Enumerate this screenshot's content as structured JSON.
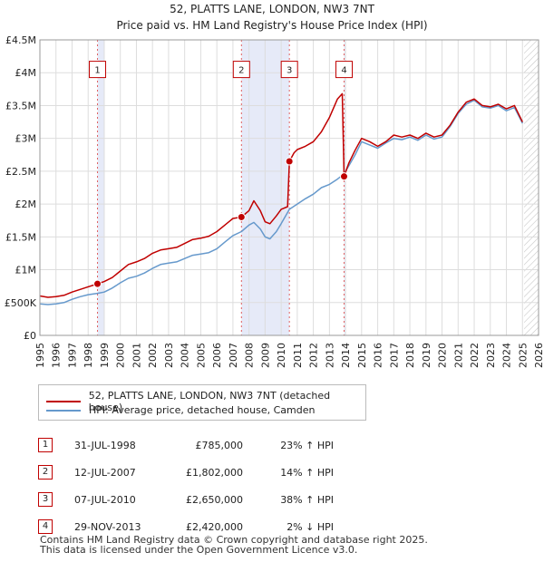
{
  "chart_data": {
    "type": "line",
    "title": "52, PLATTS LANE, LONDON, NW3 7NT",
    "subtitle": "Price paid vs. HM Land Registry's House Price Index (HPI)",
    "xlim": [
      1995,
      2026
    ],
    "ylim": [
      0,
      4500000
    ],
    "x_ticks": [
      "1995",
      "1996",
      "1997",
      "1998",
      "1999",
      "2000",
      "2001",
      "2002",
      "2003",
      "2004",
      "2005",
      "2006",
      "2007",
      "2008",
      "2009",
      "2010",
      "2011",
      "2012",
      "2013",
      "2014",
      "2015",
      "2016",
      "2017",
      "2018",
      "2019",
      "2020",
      "2021",
      "2022",
      "2023",
      "2024",
      "2025",
      "2026"
    ],
    "y_ticks": [
      {
        "value": 0,
        "label": "£0"
      },
      {
        "value": 500000,
        "label": "£500K"
      },
      {
        "value": 1000000,
        "label": "£1M"
      },
      {
        "value": 1500000,
        "label": "£1.5M"
      },
      {
        "value": 2000000,
        "label": "£2M"
      },
      {
        "value": 2500000,
        "label": "£2.5M"
      },
      {
        "value": 3000000,
        "label": "£3M"
      },
      {
        "value": 3500000,
        "label": "£3.5M"
      },
      {
        "value": 4000000,
        "label": "£4M"
      },
      {
        "value": 4500000,
        "label": "£4.5M"
      }
    ],
    "shaded_periods": [
      [
        1998.58,
        1999.0
      ],
      [
        2007.53,
        2010.51
      ],
      [
        2013.91,
        2014.0
      ]
    ],
    "hatched_after": 2025.1,
    "series": [
      {
        "name": "52, PLATTS LANE, LONDON, NW3 7NT (detached house)",
        "color": "#c00000",
        "points": [
          [
            1995.0,
            600000
          ],
          [
            1995.5,
            580000
          ],
          [
            1996.0,
            590000
          ],
          [
            1996.5,
            610000
          ],
          [
            1997.0,
            660000
          ],
          [
            1997.5,
            700000
          ],
          [
            1998.0,
            740000
          ],
          [
            1998.58,
            785000
          ],
          [
            1999.0,
            820000
          ],
          [
            1999.5,
            880000
          ],
          [
            2000.0,
            980000
          ],
          [
            2000.5,
            1080000
          ],
          [
            2001.0,
            1120000
          ],
          [
            2001.5,
            1170000
          ],
          [
            2002.0,
            1250000
          ],
          [
            2002.5,
            1300000
          ],
          [
            2003.0,
            1320000
          ],
          [
            2003.5,
            1340000
          ],
          [
            2004.0,
            1400000
          ],
          [
            2004.5,
            1460000
          ],
          [
            2005.0,
            1480000
          ],
          [
            2005.5,
            1510000
          ],
          [
            2006.0,
            1580000
          ],
          [
            2006.5,
            1680000
          ],
          [
            2007.0,
            1780000
          ],
          [
            2007.53,
            1802000
          ],
          [
            2008.0,
            1900000
          ],
          [
            2008.3,
            2050000
          ],
          [
            2008.7,
            1900000
          ],
          [
            2009.0,
            1730000
          ],
          [
            2009.3,
            1700000
          ],
          [
            2009.7,
            1820000
          ],
          [
            2010.0,
            1920000
          ],
          [
            2010.4,
            1960000
          ],
          [
            2010.51,
            2650000
          ],
          [
            2010.8,
            2780000
          ],
          [
            2011.0,
            2830000
          ],
          [
            2011.5,
            2880000
          ],
          [
            2012.0,
            2950000
          ],
          [
            2012.5,
            3100000
          ],
          [
            2013.0,
            3320000
          ],
          [
            2013.5,
            3600000
          ],
          [
            2013.8,
            3680000
          ],
          [
            2013.91,
            2420000
          ],
          [
            2014.2,
            2620000
          ],
          [
            2014.6,
            2820000
          ],
          [
            2015.0,
            3000000
          ],
          [
            2015.5,
            2950000
          ],
          [
            2016.0,
            2880000
          ],
          [
            2016.5,
            2950000
          ],
          [
            2017.0,
            3050000
          ],
          [
            2017.5,
            3020000
          ],
          [
            2018.0,
            3050000
          ],
          [
            2018.5,
            3000000
          ],
          [
            2019.0,
            3080000
          ],
          [
            2019.5,
            3020000
          ],
          [
            2020.0,
            3050000
          ],
          [
            2020.5,
            3200000
          ],
          [
            2021.0,
            3400000
          ],
          [
            2021.5,
            3550000
          ],
          [
            2022.0,
            3600000
          ],
          [
            2022.5,
            3500000
          ],
          [
            2023.0,
            3480000
          ],
          [
            2023.5,
            3520000
          ],
          [
            2024.0,
            3450000
          ],
          [
            2024.5,
            3500000
          ],
          [
            2025.0,
            3250000
          ]
        ]
      },
      {
        "name": "HPI: Average price, detached house, Camden",
        "color": "#6699cc",
        "points": [
          [
            1995.0,
            480000
          ],
          [
            1995.5,
            470000
          ],
          [
            1996.0,
            480000
          ],
          [
            1996.5,
            500000
          ],
          [
            1997.0,
            550000
          ],
          [
            1997.5,
            590000
          ],
          [
            1998.0,
            620000
          ],
          [
            1998.58,
            640000
          ],
          [
            1999.0,
            660000
          ],
          [
            1999.5,
            720000
          ],
          [
            2000.0,
            800000
          ],
          [
            2000.5,
            870000
          ],
          [
            2001.0,
            900000
          ],
          [
            2001.5,
            950000
          ],
          [
            2002.0,
            1020000
          ],
          [
            2002.5,
            1080000
          ],
          [
            2003.0,
            1100000
          ],
          [
            2003.5,
            1120000
          ],
          [
            2004.0,
            1170000
          ],
          [
            2004.5,
            1220000
          ],
          [
            2005.0,
            1240000
          ],
          [
            2005.5,
            1260000
          ],
          [
            2006.0,
            1320000
          ],
          [
            2006.5,
            1420000
          ],
          [
            2007.0,
            1520000
          ],
          [
            2007.53,
            1580000
          ],
          [
            2008.0,
            1680000
          ],
          [
            2008.3,
            1720000
          ],
          [
            2008.7,
            1620000
          ],
          [
            2009.0,
            1500000
          ],
          [
            2009.3,
            1470000
          ],
          [
            2009.7,
            1580000
          ],
          [
            2010.0,
            1700000
          ],
          [
            2010.51,
            1920000
          ],
          [
            2011.0,
            2000000
          ],
          [
            2011.5,
            2080000
          ],
          [
            2012.0,
            2150000
          ],
          [
            2012.5,
            2250000
          ],
          [
            2013.0,
            2300000
          ],
          [
            2013.5,
            2380000
          ],
          [
            2013.91,
            2460000
          ],
          [
            2014.2,
            2580000
          ],
          [
            2014.6,
            2750000
          ],
          [
            2015.0,
            2950000
          ],
          [
            2015.5,
            2900000
          ],
          [
            2016.0,
            2850000
          ],
          [
            2016.5,
            2930000
          ],
          [
            2017.0,
            3000000
          ],
          [
            2017.5,
            2980000
          ],
          [
            2018.0,
            3020000
          ],
          [
            2018.5,
            2970000
          ],
          [
            2019.0,
            3050000
          ],
          [
            2019.5,
            2990000
          ],
          [
            2020.0,
            3020000
          ],
          [
            2020.5,
            3180000
          ],
          [
            2021.0,
            3380000
          ],
          [
            2021.5,
            3520000
          ],
          [
            2022.0,
            3580000
          ],
          [
            2022.5,
            3480000
          ],
          [
            2023.0,
            3460000
          ],
          [
            2023.5,
            3500000
          ],
          [
            2024.0,
            3420000
          ],
          [
            2024.5,
            3470000
          ],
          [
            2025.0,
            3230000
          ]
        ]
      }
    ],
    "sales": [
      {
        "id": "1",
        "x": 1998.58,
        "y": 785000
      },
      {
        "id": "2",
        "x": 2007.53,
        "y": 1802000
      },
      {
        "id": "3",
        "x": 2010.51,
        "y": 2650000
      },
      {
        "id": "4",
        "x": 2013.91,
        "y": 2420000
      }
    ]
  },
  "legend": {
    "property_label": "52, PLATTS LANE, LONDON, NW3 7NT (detached house)",
    "hpi_label": "HPI: Average price, detached house, Camden",
    "property_color": "#c00000",
    "hpi_color": "#6699cc"
  },
  "sales_table": [
    {
      "num": "1",
      "date": "31-JUL-1998",
      "price": "£785,000",
      "hpi": "23% ↑ HPI"
    },
    {
      "num": "2",
      "date": "12-JUL-2007",
      "price": "£1,802,000",
      "hpi": "14% ↑ HPI"
    },
    {
      "num": "3",
      "date": "07-JUL-2010",
      "price": "£2,650,000",
      "hpi": "38% ↑ HPI"
    },
    {
      "num": "4",
      "date": "29-NOV-2013",
      "price": "£2,420,000",
      "hpi": "2% ↓ HPI"
    }
  ],
  "footer": {
    "line1": "Contains HM Land Registry data © Crown copyright and database right 2025.",
    "line2": "This data is licensed under the Open Government Licence v3.0."
  }
}
